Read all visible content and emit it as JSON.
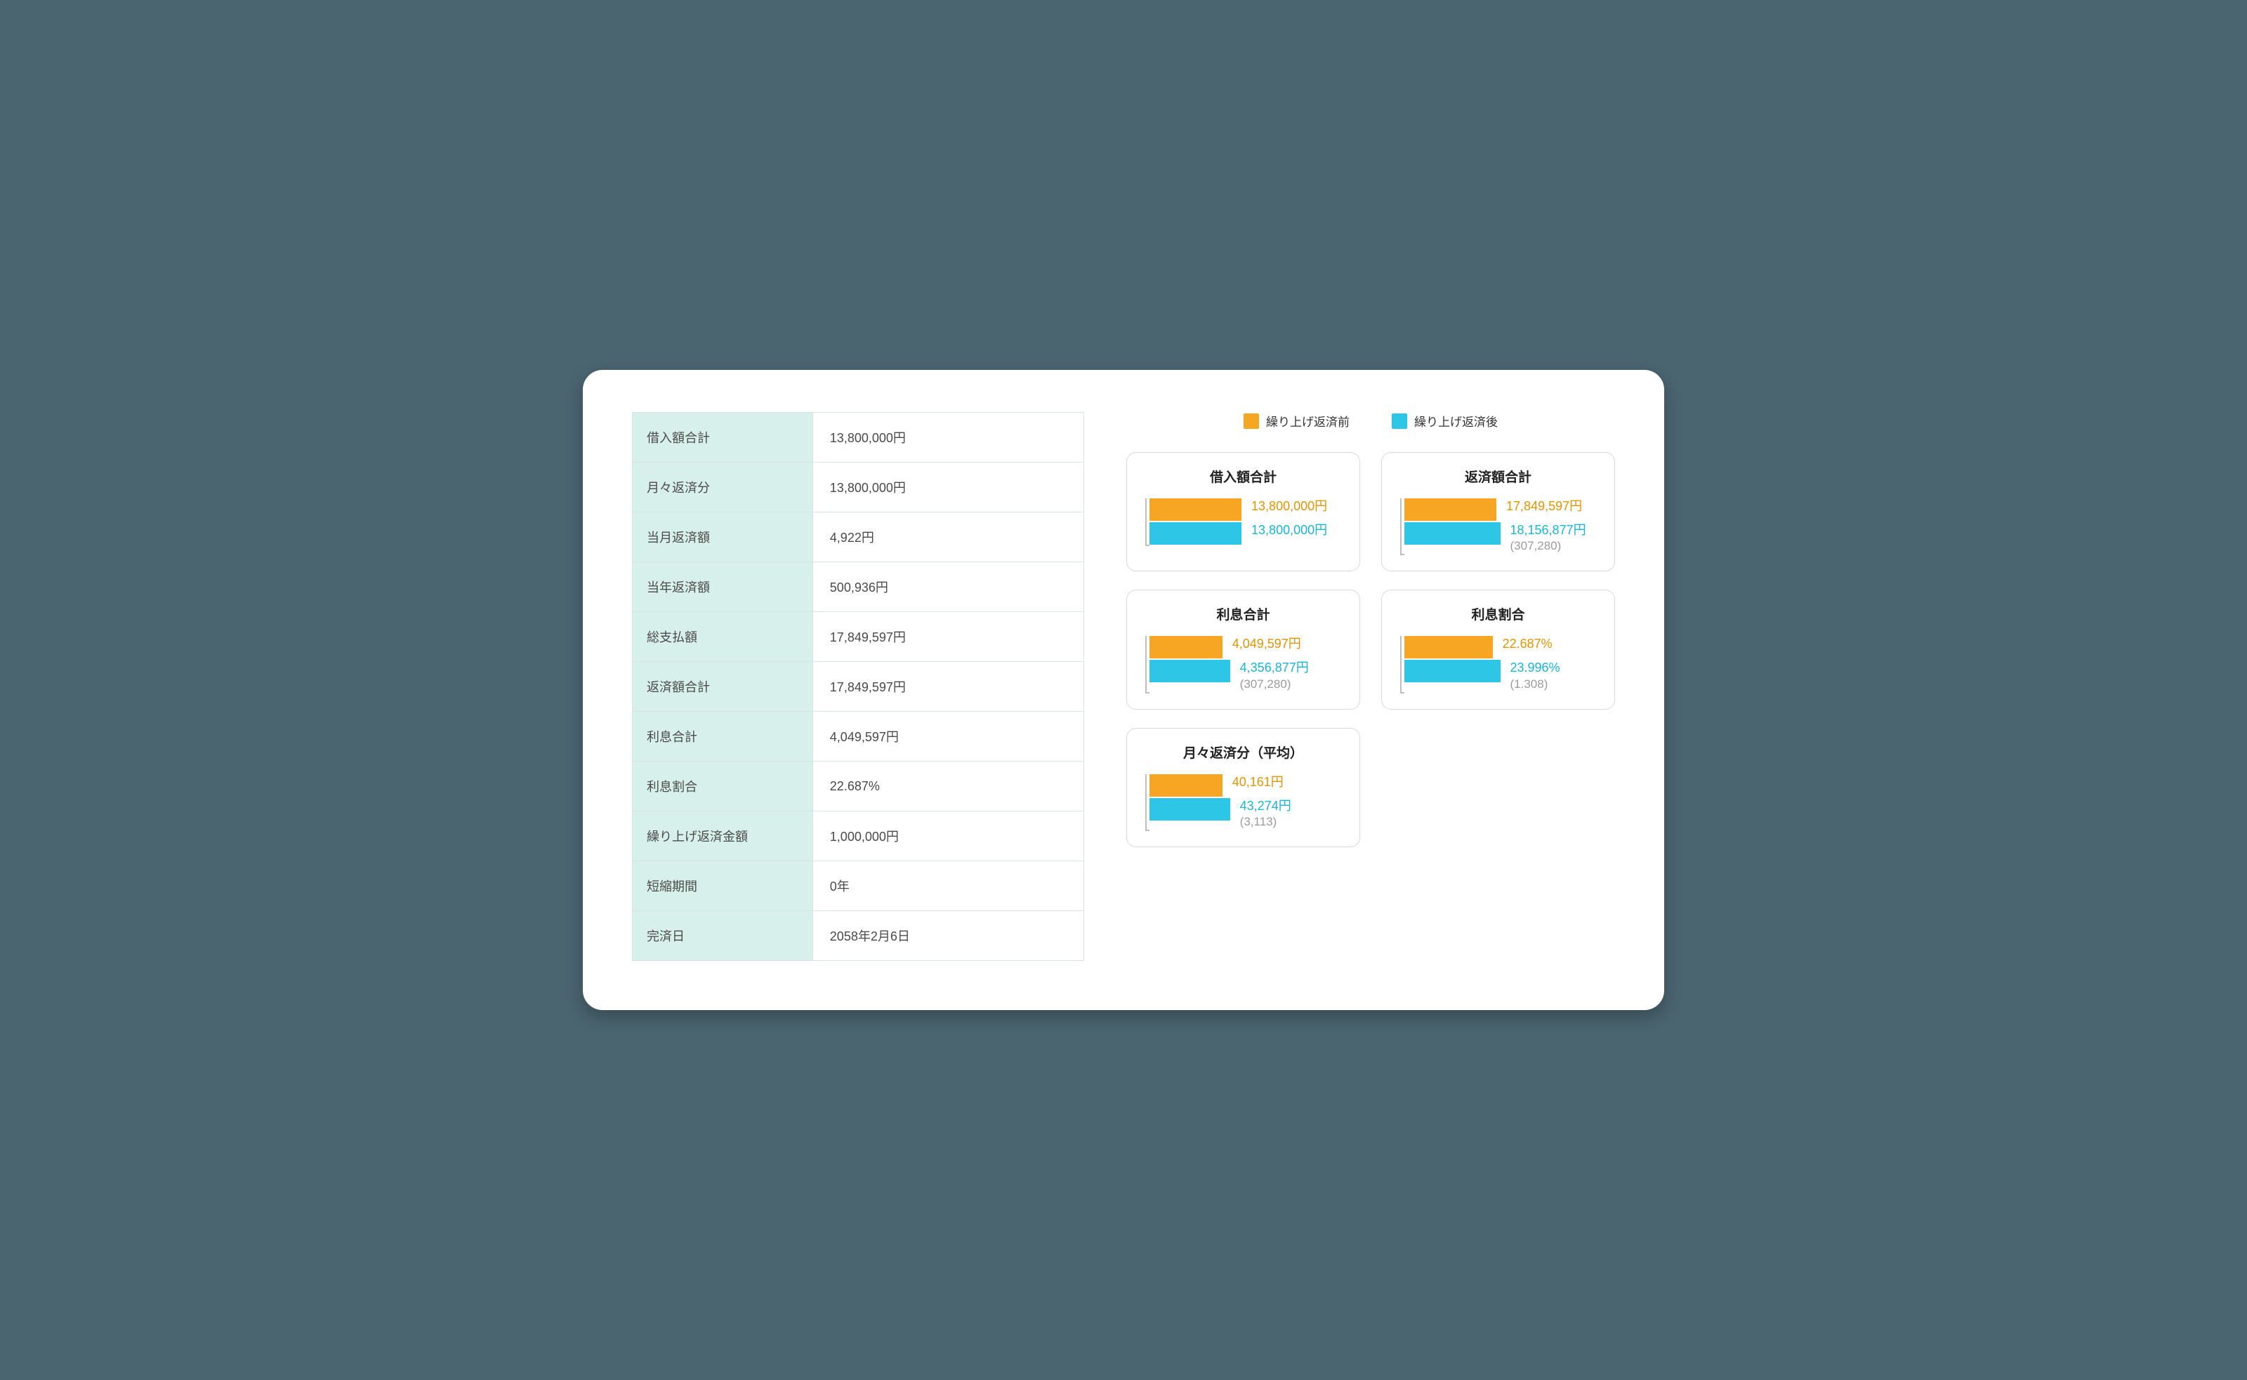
{
  "colors": {
    "before": "#f6a623",
    "after": "#2ec6e6",
    "table_header_bg": "#d8f0ec",
    "border": "#d9d9d9",
    "panel_bg": "#ffffff",
    "page_bg": "#4a6470"
  },
  "legend": {
    "before": "繰り上げ返済前",
    "after": "繰り上げ返済後"
  },
  "table": [
    {
      "label": "借入額合計",
      "value": "13,800,000円"
    },
    {
      "label": "月々返済分",
      "value": "13,800,000円"
    },
    {
      "label": "当月返済額",
      "value": "4,922円"
    },
    {
      "label": "当年返済額",
      "value": "500,936円"
    },
    {
      "label": "総支払額",
      "value": "17,849,597円"
    },
    {
      "label": "返済額合計",
      "value": "17,849,597円"
    },
    {
      "label": "利息合計",
      "value": "4,049,597円"
    },
    {
      "label": "利息割合",
      "value": "22.687%"
    },
    {
      "label": "繰り上げ返済金額",
      "value": "1,000,000円"
    },
    {
      "label": "短縮期間",
      "value": "0年"
    },
    {
      "label": "完済日",
      "value": "2058年2月6日"
    }
  ],
  "cards": [
    {
      "title": "借入額合計",
      "before": {
        "label": "13,800,000円",
        "width_pct": 48
      },
      "after": {
        "label": "13,800,000円",
        "width_pct": 48,
        "diff": null
      }
    },
    {
      "title": "返済額合計",
      "before": {
        "label": "17,849,597円",
        "width_pct": 48
      },
      "after": {
        "label": "18,156,877円",
        "width_pct": 50,
        "diff": "(307,280)"
      }
    },
    {
      "title": "利息合計",
      "before": {
        "label": "4,049,597円",
        "width_pct": 38
      },
      "after": {
        "label": "4,356,877円",
        "width_pct": 42,
        "diff": "(307,280)"
      }
    },
    {
      "title": "利息割合",
      "before": {
        "label": "22.687%",
        "width_pct": 46
      },
      "after": {
        "label": "23.996%",
        "width_pct": 50,
        "diff": "(1.308)"
      }
    },
    {
      "title": "月々返済分（平均）",
      "before": {
        "label": "40,161円",
        "width_pct": 38
      },
      "after": {
        "label": "43,274円",
        "width_pct": 42,
        "diff": "(3,113)"
      }
    }
  ]
}
